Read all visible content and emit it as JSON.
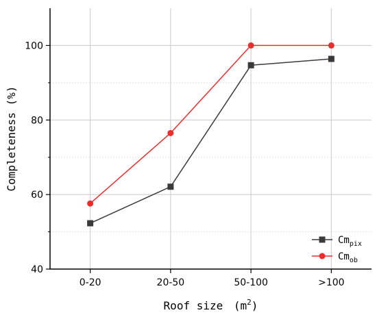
{
  "chart_data": {
    "type": "line",
    "categories": [
      "0-20",
      "20-50",
      "50-100",
      ">100"
    ],
    "series": [
      {
        "name": "Cm",
        "subscript": "pix",
        "color": "#3a3a3a",
        "marker": "square",
        "values": [
          52.3,
          62.1,
          94.7,
          96.4
        ]
      },
      {
        "name": "Cm",
        "subscript": "ob",
        "color": "#ef2b2b",
        "marker": "circle",
        "values": [
          57.6,
          76.5,
          100.0,
          100.0
        ]
      }
    ],
    "xlabel": "Roof size",
    "xlabel_unit_base": "m",
    "xlabel_unit_exp": "2",
    "ylabel": "Completeness (%)",
    "ylim": [
      40,
      110
    ],
    "yticks": [
      40,
      60,
      80,
      100
    ],
    "grid": true,
    "legend_position": "bottom-right"
  }
}
